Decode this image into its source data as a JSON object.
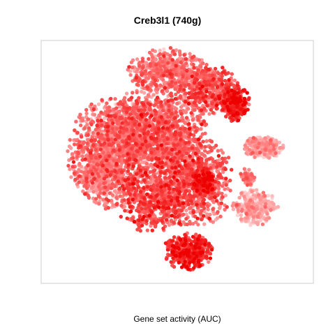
{
  "chart_data": {
    "type": "scatter",
    "title": "Creb3l1 (740g)",
    "xlabel": "Gene set activity (AUC)",
    "ylabel": "",
    "grid": false,
    "legend": "none",
    "colors": {
      "low": "#ffd3d3",
      "mid": "#ff7070",
      "high": "#ee0000",
      "frame": "#cccccc"
    },
    "series": [
      {
        "clusters": [
          {
            "x": 0.24,
            "y": 0.46,
            "rx": 0.17,
            "ry": 0.24,
            "n": 1300,
            "activity": 0.42
          },
          {
            "x": 0.42,
            "y": 0.36,
            "rx": 0.2,
            "ry": 0.2,
            "n": 1250,
            "activity": 0.5
          },
          {
            "x": 0.46,
            "y": 0.1,
            "rx": 0.16,
            "ry": 0.1,
            "n": 520,
            "activity": 0.42
          },
          {
            "x": 0.62,
            "y": 0.18,
            "rx": 0.12,
            "ry": 0.11,
            "n": 420,
            "activity": 0.55
          },
          {
            "x": 0.72,
            "y": 0.24,
            "rx": 0.06,
            "ry": 0.08,
            "n": 280,
            "activity": 0.78
          },
          {
            "x": 0.56,
            "y": 0.58,
            "rx": 0.16,
            "ry": 0.2,
            "n": 900,
            "activity": 0.52
          },
          {
            "x": 0.4,
            "y": 0.66,
            "rx": 0.14,
            "ry": 0.14,
            "n": 500,
            "activity": 0.6
          },
          {
            "x": 0.6,
            "y": 0.58,
            "rx": 0.05,
            "ry": 0.06,
            "n": 160,
            "activity": 0.82
          },
          {
            "x": 0.54,
            "y": 0.88,
            "rx": 0.1,
            "ry": 0.08,
            "n": 420,
            "activity": 0.74
          },
          {
            "x": 0.19,
            "y": 0.55,
            "rx": 0.07,
            "ry": 0.09,
            "n": 180,
            "activity": 0.18
          },
          {
            "x": 0.83,
            "y": 0.43,
            "rx": 0.08,
            "ry": 0.05,
            "n": 260,
            "activity": 0.2
          },
          {
            "x": 0.8,
            "y": 0.69,
            "rx": 0.09,
            "ry": 0.08,
            "n": 300,
            "activity": 0.16
          },
          {
            "x": 0.77,
            "y": 0.56,
            "rx": 0.03,
            "ry": 0.04,
            "n": 60,
            "activity": 0.4
          }
        ]
      }
    ]
  }
}
